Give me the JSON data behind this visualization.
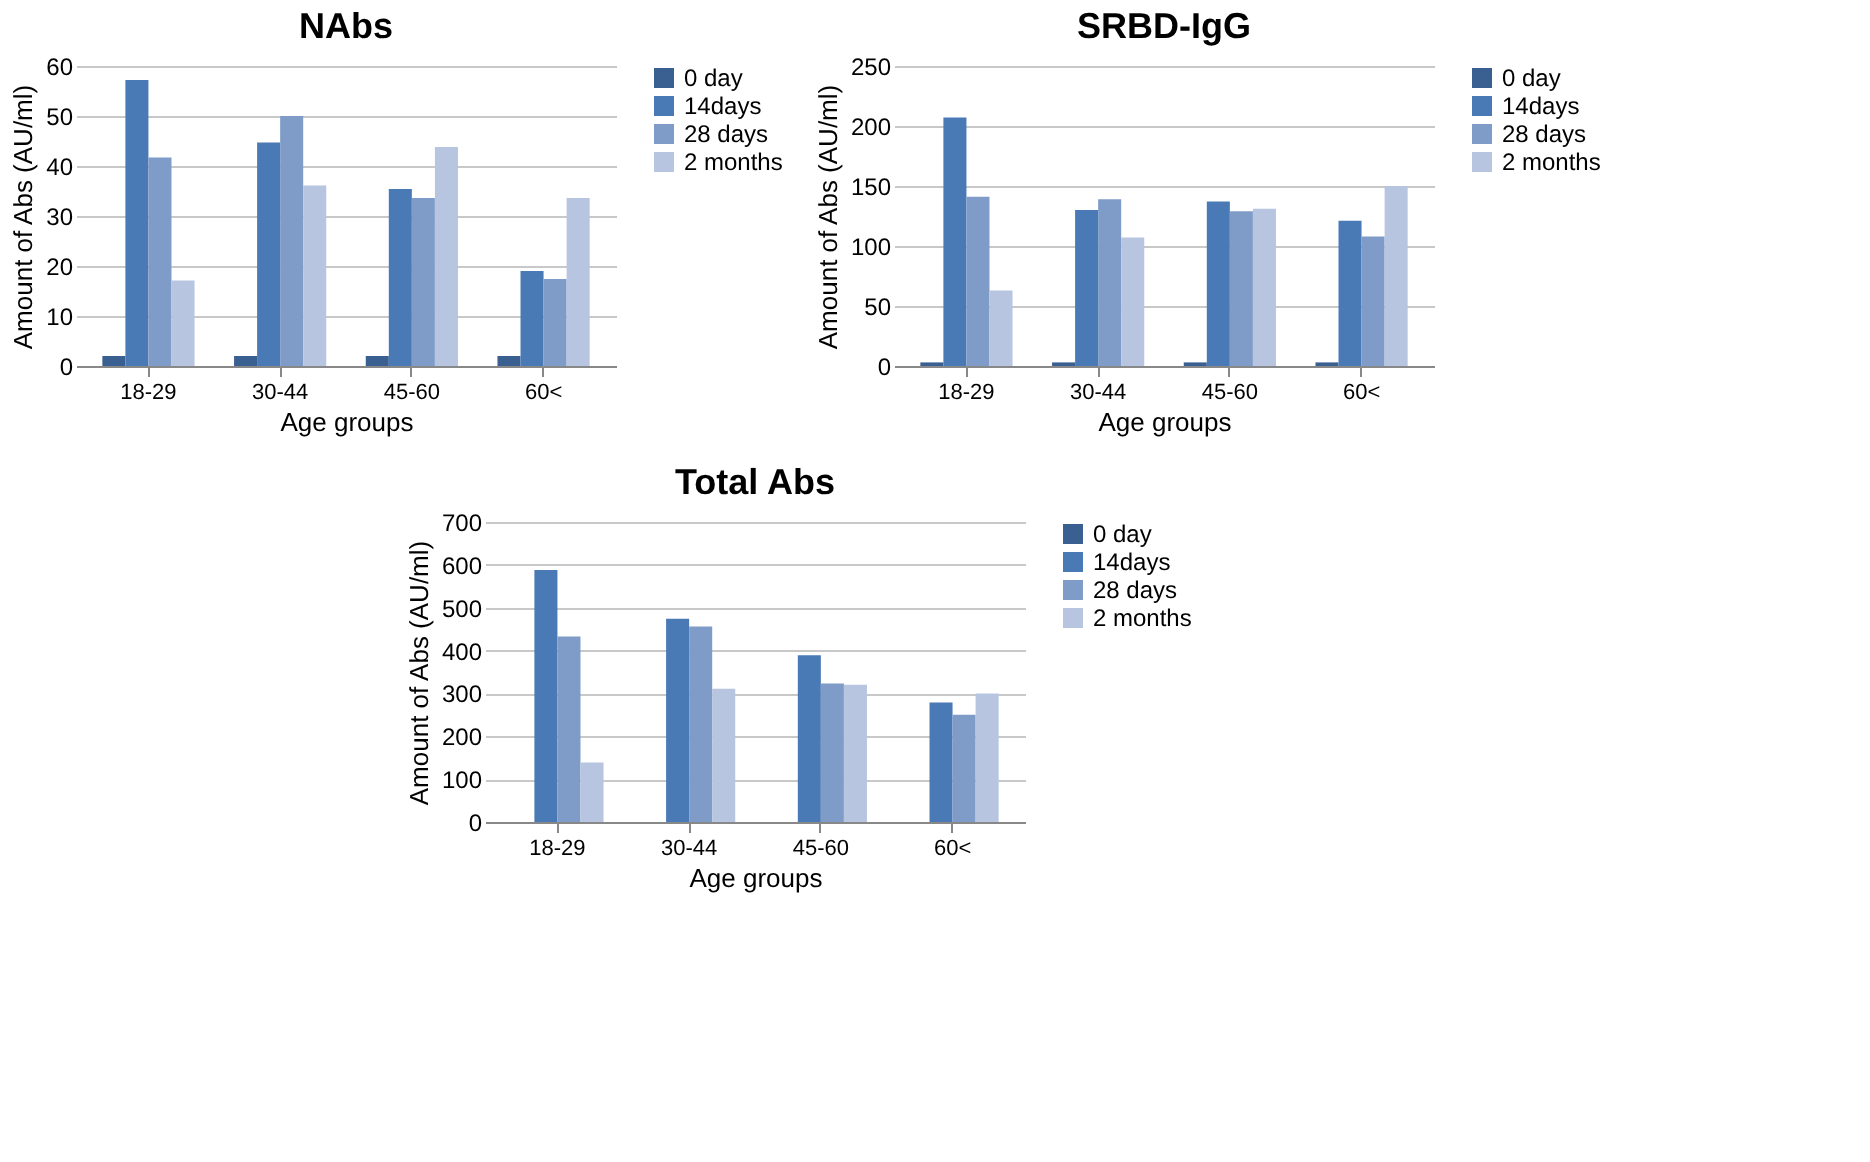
{
  "chart_data": [
    {
      "type": "bar",
      "title": "NAbs",
      "xlabel": "Age groups",
      "ylabel": "Amount of Abs (AU/ml)",
      "categories": [
        "18-29",
        "30-44",
        "45-60",
        "60<"
      ],
      "series": [
        {
          "name": "0 day",
          "color": "#3a5f91",
          "values": [
            2,
            2,
            2,
            2
          ]
        },
        {
          "name": "14days",
          "color": "#4a7ab5",
          "values": [
            57.2,
            44.7,
            35.4,
            19
          ]
        },
        {
          "name": "28 days",
          "color": "#7f9cc9",
          "values": [
            41.7,
            50,
            33.6,
            17.4
          ]
        },
        {
          "name": "2 months",
          "color": "#b7c5e0",
          "values": [
            17.1,
            36.1,
            43.8,
            33.6
          ]
        }
      ],
      "ylim": [
        0,
        60
      ],
      "yticks": [
        0,
        10,
        20,
        30,
        40,
        50,
        60
      ],
      "grid": "y",
      "legend": "right"
    },
    {
      "type": "bar",
      "title": "SRBD-IgG",
      "xlabel": "Age groups",
      "ylabel": "Amount of Abs (AU/ml)",
      "categories": [
        "18-29",
        "30-44",
        "45-60",
        "60<"
      ],
      "series": [
        {
          "name": "0 day",
          "color": "#3a5f91",
          "values": [
            3,
            3,
            3,
            3
          ]
        },
        {
          "name": "14days",
          "color": "#4a7ab5",
          "values": [
            207,
            130,
            137,
            121
          ]
        },
        {
          "name": "28 days",
          "color": "#7f9cc9",
          "values": [
            141,
            139,
            129,
            108
          ]
        },
        {
          "name": "2 months",
          "color": "#b7c5e0",
          "values": [
            63,
            107,
            131,
            150
          ]
        }
      ],
      "ylim": [
        0,
        250
      ],
      "yticks": [
        0,
        50,
        100,
        150,
        200,
        250
      ],
      "grid": "y",
      "legend": "right"
    },
    {
      "type": "bar",
      "title": "Total Abs",
      "xlabel": "Age groups",
      "ylabel": "Amount of Abs (AU/ml)",
      "categories": [
        "18-29",
        "30-44",
        "45-60",
        "60<"
      ],
      "series": [
        {
          "name": "0 day",
          "color": "#3a5f91",
          "values": [
            0,
            0,
            0,
            0
          ]
        },
        {
          "name": "14days",
          "color": "#4a7ab5",
          "values": [
            588,
            474,
            389,
            279
          ]
        },
        {
          "name": "28 days",
          "color": "#7f9cc9",
          "values": [
            433,
            456,
            323,
            250
          ]
        },
        {
          "name": "2 months",
          "color": "#b7c5e0",
          "values": [
            139,
            311,
            320,
            300
          ]
        }
      ],
      "ylim": [
        0,
        700
      ],
      "yticks": [
        0,
        100,
        200,
        300,
        400,
        500,
        600,
        700
      ],
      "grid": "y",
      "legend": "right"
    }
  ]
}
